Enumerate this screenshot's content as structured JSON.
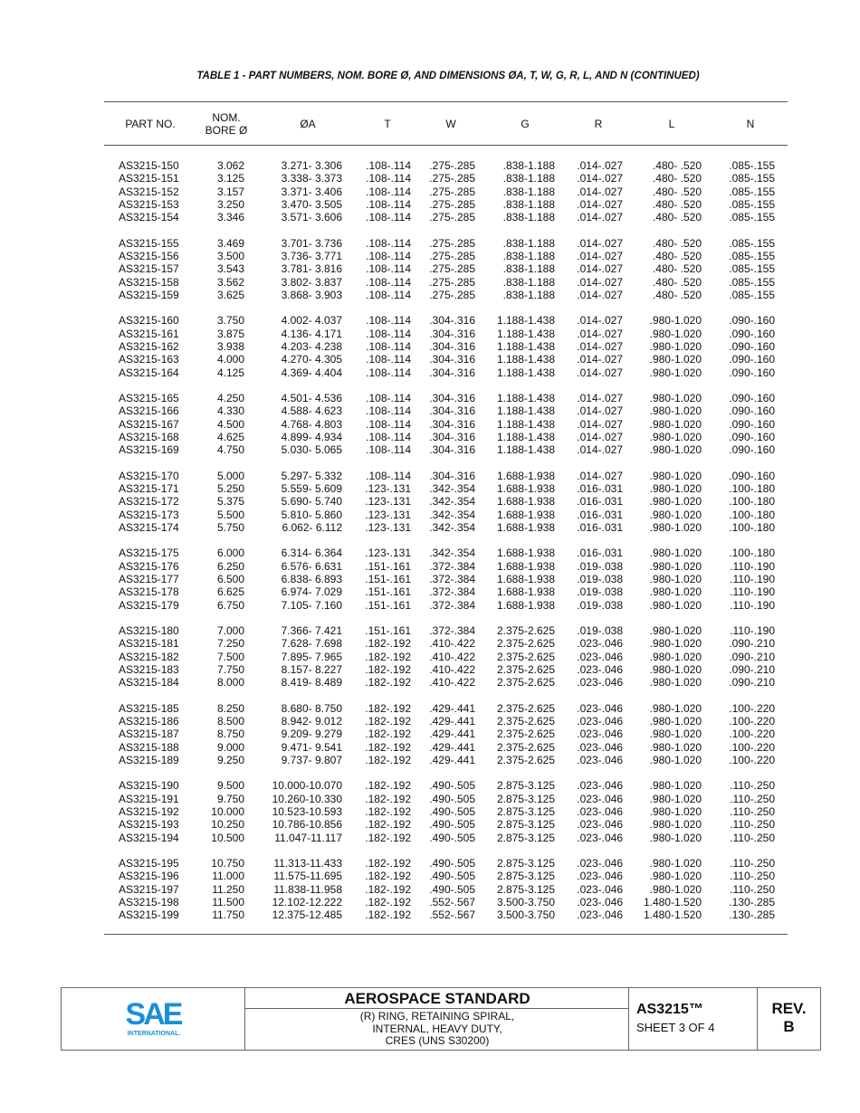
{
  "title": "TABLE 1 - PART NUMBERS, NOM. BORE Ø, AND DIMENSIONS ØA, T, W, G, R, L, AND N (CONTINUED)",
  "headers": {
    "part": "PART NO.",
    "nom_1": "NOM.",
    "nom_2": "BORE Ø",
    "oa": "ØA",
    "t": "T",
    "w": "W",
    "g": "G",
    "r": "R",
    "l": "L",
    "n": "N"
  },
  "groups": [
    [
      [
        "AS3215-150",
        "3.062",
        "3.271- 3.306",
        ".108-.114",
        ".275-.285",
        ".838-1.188",
        ".014-.027",
        ".480- .520",
        ".085-.155"
      ],
      [
        "AS3215-151",
        "3.125",
        "3.338- 3.373",
        ".108-.114",
        ".275-.285",
        ".838-1.188",
        ".014-.027",
        ".480- .520",
        ".085-.155"
      ],
      [
        "AS3215-152",
        "3.157",
        "3.371- 3.406",
        ".108-.114",
        ".275-.285",
        ".838-1.188",
        ".014-.027",
        ".480- .520",
        ".085-.155"
      ],
      [
        "AS3215-153",
        "3.250",
        "3.470- 3.505",
        ".108-.114",
        ".275-.285",
        ".838-1.188",
        ".014-.027",
        ".480- .520",
        ".085-.155"
      ],
      [
        "AS3215-154",
        "3.346",
        "3.571- 3.606",
        ".108-.114",
        ".275-.285",
        ".838-1.188",
        ".014-.027",
        ".480- .520",
        ".085-.155"
      ]
    ],
    [
      [
        "AS3215-155",
        "3.469",
        "3.701- 3.736",
        ".108-.114",
        ".275-.285",
        ".838-1.188",
        ".014-.027",
        ".480- .520",
        ".085-.155"
      ],
      [
        "AS3215-156",
        "3.500",
        "3.736- 3.771",
        ".108-.114",
        ".275-.285",
        ".838-1.188",
        ".014-.027",
        ".480- .520",
        ".085-.155"
      ],
      [
        "AS3215-157",
        "3.543",
        "3.781- 3.816",
        ".108-.114",
        ".275-.285",
        ".838-1.188",
        ".014-.027",
        ".480- .520",
        ".085-.155"
      ],
      [
        "AS3215-158",
        "3.562",
        "3.802- 3.837",
        ".108-.114",
        ".275-.285",
        ".838-1.188",
        ".014-.027",
        ".480- .520",
        ".085-.155"
      ],
      [
        "AS3215-159",
        "3.625",
        "3.868- 3.903",
        ".108-.114",
        ".275-.285",
        ".838-1.188",
        ".014-.027",
        ".480- .520",
        ".085-.155"
      ]
    ],
    [
      [
        "AS3215-160",
        "3.750",
        "4.002- 4.037",
        ".108-.114",
        ".304-.316",
        "1.188-1.438",
        ".014-.027",
        ".980-1.020",
        ".090-.160"
      ],
      [
        "AS3215-161",
        "3.875",
        "4.136- 4.171",
        ".108-.114",
        ".304-.316",
        "1.188-1.438",
        ".014-.027",
        ".980-1.020",
        ".090-.160"
      ],
      [
        "AS3215-162",
        "3.938",
        "4.203- 4.238",
        ".108-.114",
        ".304-.316",
        "1.188-1.438",
        ".014-.027",
        ".980-1.020",
        ".090-.160"
      ],
      [
        "AS3215-163",
        "4.000",
        "4.270- 4.305",
        ".108-.114",
        ".304-.316",
        "1.188-1.438",
        ".014-.027",
        ".980-1.020",
        ".090-.160"
      ],
      [
        "AS3215-164",
        "4.125",
        "4.369- 4.404",
        ".108-.114",
        ".304-.316",
        "1.188-1.438",
        ".014-.027",
        ".980-1.020",
        ".090-.160"
      ]
    ],
    [
      [
        "AS3215-165",
        "4.250",
        "4.501- 4.536",
        ".108-.114",
        ".304-.316",
        "1.188-1.438",
        ".014-.027",
        ".980-1.020",
        ".090-.160"
      ],
      [
        "AS3215-166",
        "4.330",
        "4.588- 4.623",
        ".108-.114",
        ".304-.316",
        "1.188-1.438",
        ".014-.027",
        ".980-1.020",
        ".090-.160"
      ],
      [
        "AS3215-167",
        "4.500",
        "4.768- 4.803",
        ".108-.114",
        ".304-.316",
        "1.188-1.438",
        ".014-.027",
        ".980-1.020",
        ".090-.160"
      ],
      [
        "AS3215-168",
        "4.625",
        "4.899- 4.934",
        ".108-.114",
        ".304-.316",
        "1.188-1.438",
        ".014-.027",
        ".980-1.020",
        ".090-.160"
      ],
      [
        "AS3215-169",
        "4.750",
        "5.030- 5.065",
        ".108-.114",
        ".304-.316",
        "1.188-1.438",
        ".014-.027",
        ".980-1.020",
        ".090-.160"
      ]
    ],
    [
      [
        "AS3215-170",
        "5.000",
        "5.297- 5.332",
        ".108-.114",
        ".304-.316",
        "1.688-1.938",
        ".014-.027",
        ".980-1.020",
        ".090-.160"
      ],
      [
        "AS3215-171",
        "5.250",
        "5.559- 5.609",
        ".123-.131",
        ".342-.354",
        "1.688-1.938",
        ".016-.031",
        ".980-1.020",
        ".100-.180"
      ],
      [
        "AS3215-172",
        "5.375",
        "5.690- 5.740",
        ".123-.131",
        ".342-.354",
        "1.688-1.938",
        ".016-.031",
        ".980-1.020",
        ".100-.180"
      ],
      [
        "AS3215-173",
        "5.500",
        "5.810- 5.860",
        ".123-.131",
        ".342-.354",
        "1.688-1.938",
        ".016-.031",
        ".980-1.020",
        ".100-.180"
      ],
      [
        "AS3215-174",
        "5.750",
        "6.062- 6.112",
        ".123-.131",
        ".342-.354",
        "1.688-1.938",
        ".016-.031",
        ".980-1.020",
        ".100-.180"
      ]
    ],
    [
      [
        "AS3215-175",
        "6.000",
        "6.314- 6.364",
        ".123-.131",
        ".342-.354",
        "1.688-1.938",
        ".016-.031",
        ".980-1.020",
        ".100-.180"
      ],
      [
        "AS3215-176",
        "6.250",
        "6.576- 6.631",
        ".151-.161",
        ".372-.384",
        "1.688-1.938",
        ".019-.038",
        ".980-1.020",
        ".110-.190"
      ],
      [
        "AS3215-177",
        "6.500",
        "6.838- 6.893",
        ".151-.161",
        ".372-.384",
        "1.688-1.938",
        ".019-.038",
        ".980-1.020",
        ".110-.190"
      ],
      [
        "AS3215-178",
        "6.625",
        "6.974- 7.029",
        ".151-.161",
        ".372-.384",
        "1.688-1.938",
        ".019-.038",
        ".980-1.020",
        ".110-.190"
      ],
      [
        "AS3215-179",
        "6.750",
        "7.105- 7.160",
        ".151-.161",
        ".372-.384",
        "1.688-1.938",
        ".019-.038",
        ".980-1.020",
        ".110-.190"
      ]
    ],
    [
      [
        "AS3215-180",
        "7.000",
        "7.366- 7.421",
        ".151-.161",
        ".372-.384",
        "2.375-2.625",
        ".019-.038",
        ".980-1.020",
        ".110-.190"
      ],
      [
        "AS3215-181",
        "7.250",
        "7.628- 7.698",
        ".182-.192",
        ".410-.422",
        "2.375-2.625",
        ".023-.046",
        ".980-1.020",
        ".090-.210"
      ],
      [
        "AS3215-182",
        "7.500",
        "7.895- 7.965",
        ".182-.192",
        ".410-.422",
        "2.375-2.625",
        ".023-.046",
        ".980-1.020",
        ".090-.210"
      ],
      [
        "AS3215-183",
        "7.750",
        "8.157- 8.227",
        ".182-.192",
        ".410-.422",
        "2.375-2.625",
        ".023-.046",
        ".980-1.020",
        ".090-.210"
      ],
      [
        "AS3215-184",
        "8.000",
        "8.419- 8.489",
        ".182-.192",
        ".410-.422",
        "2.375-2.625",
        ".023-.046",
        ".980-1.020",
        ".090-.210"
      ]
    ],
    [
      [
        "AS3215-185",
        "8.250",
        "8.680- 8.750",
        ".182-.192",
        ".429-.441",
        "2.375-2.625",
        ".023-.046",
        ".980-1.020",
        ".100-.220"
      ],
      [
        "AS3215-186",
        "8.500",
        "8.942- 9.012",
        ".182-.192",
        ".429-.441",
        "2.375-2.625",
        ".023-.046",
        ".980-1.020",
        ".100-.220"
      ],
      [
        "AS3215-187",
        "8.750",
        "9.209- 9.279",
        ".182-.192",
        ".429-.441",
        "2.375-2.625",
        ".023-.046",
        ".980-1.020",
        ".100-.220"
      ],
      [
        "AS3215-188",
        "9.000",
        "9.471- 9.541",
        ".182-.192",
        ".429-.441",
        "2.375-2.625",
        ".023-.046",
        ".980-1.020",
        ".100-.220"
      ],
      [
        "AS3215-189",
        "9.250",
        "9.737- 9.807",
        ".182-.192",
        ".429-.441",
        "2.375-2.625",
        ".023-.046",
        ".980-1.020",
        ".100-.220"
      ]
    ],
    [
      [
        "AS3215-190",
        "9.500",
        "10.000-10.070",
        ".182-.192",
        ".490-.505",
        "2.875-3.125",
        ".023-.046",
        ".980-1.020",
        ".110-.250"
      ],
      [
        "AS3215-191",
        "9.750",
        "10.260-10.330",
        ".182-.192",
        ".490-.505",
        "2.875-3.125",
        ".023-.046",
        ".980-1.020",
        ".110-.250"
      ],
      [
        "AS3215-192",
        "10.000",
        "10.523-10.593",
        ".182-.192",
        ".490-.505",
        "2.875-3.125",
        ".023-.046",
        ".980-1.020",
        ".110-.250"
      ],
      [
        "AS3215-193",
        "10.250",
        "10.786-10.856",
        ".182-.192",
        ".490-.505",
        "2.875-3.125",
        ".023-.046",
        ".980-1.020",
        ".110-.250"
      ],
      [
        "AS3215-194",
        "10.500",
        "11.047-11.117",
        ".182-.192",
        ".490-.505",
        "2.875-3.125",
        ".023-.046",
        ".980-1.020",
        ".110-.250"
      ]
    ],
    [
      [
        "AS3215-195",
        "10.750",
        "11.313-11.433",
        ".182-.192",
        ".490-.505",
        "2.875-3.125",
        ".023-.046",
        ".980-1.020",
        ".110-.250"
      ],
      [
        "AS3215-196",
        "11.000",
        "11.575-11.695",
        ".182-.192",
        ".490-.505",
        "2.875-3.125",
        ".023-.046",
        ".980-1.020",
        ".110-.250"
      ],
      [
        "AS3215-197",
        "11.250",
        "11.838-11.958",
        ".182-.192",
        ".490-.505",
        "2.875-3.125",
        ".023-.046",
        ".980-1.020",
        ".110-.250"
      ],
      [
        "AS3215-198",
        "11.500",
        "12.102-12.222",
        ".182-.192",
        ".552-.567",
        "3.500-3.750",
        ".023-.046",
        "1.480-1.520",
        ".130-.285"
      ],
      [
        "AS3215-199",
        "11.750",
        "12.375-12.485",
        ".182-.192",
        ".552-.567",
        "3.500-3.750",
        ".023-.046",
        "1.480-1.520",
        ".130-.285"
      ]
    ]
  ],
  "footer": {
    "logo_text": "SAE",
    "logo_subtext": "INTERNATIONAL",
    "logo_color": "#1b8fd8",
    "heading": "AEROSPACE STANDARD",
    "desc_1": "(R) RING, RETAINING SPIRAL,",
    "desc_2": "INTERNAL, HEAVY DUTY,",
    "desc_3": "CRES (UNS S30200)",
    "doc_number": "AS3215™",
    "sheet": "SHEET 3 OF 4",
    "rev_label": "REV.",
    "rev_value": "B"
  }
}
